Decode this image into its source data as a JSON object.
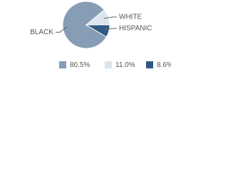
{
  "chart_data": {
    "type": "pie",
    "categories": [
      "BLACK",
      "WHITE",
      "HISPANIC"
    ],
    "values": [
      80.5,
      11.0,
      8.6
    ],
    "value_labels": [
      "80.5%",
      "11.0%",
      "8.6%"
    ],
    "colors": [
      "#869db5",
      "#dce4ec",
      "#2e5b82"
    ]
  }
}
